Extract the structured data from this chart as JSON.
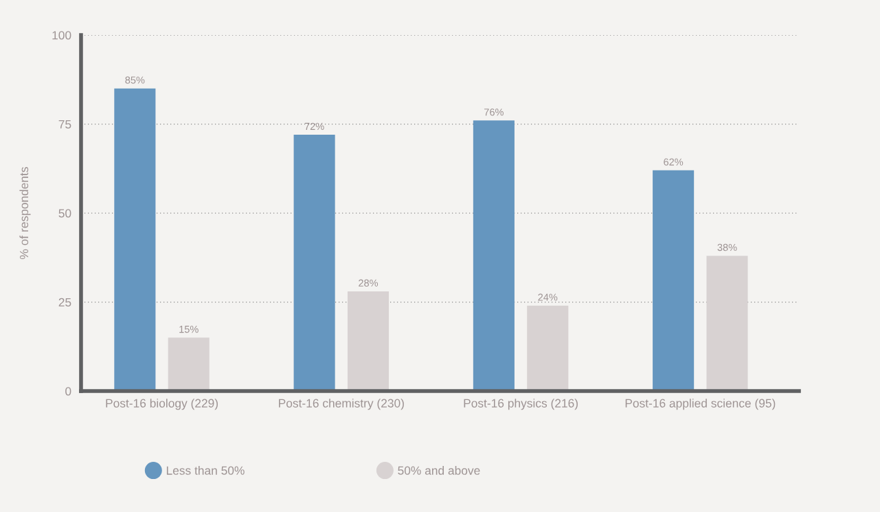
{
  "chart_data": {
    "type": "bar",
    "ylabel": "% of respondents",
    "categories": [
      "Post-16 biology (229)",
      "Post-16 chemistry (230)",
      "Post-16 physics (216)",
      "Post-16 applied science (95)"
    ],
    "series": [
      {
        "name": "Less than 50%",
        "color": "#6596bf",
        "values": [
          85,
          72,
          76,
          62
        ],
        "value_labels": [
          "85%",
          "72%",
          "76%",
          "62%"
        ]
      },
      {
        "name": "50% and above",
        "color": "#d8d2d2",
        "values": [
          15,
          28,
          24,
          38
        ],
        "value_labels": [
          "15%",
          "28%",
          "24%",
          "38%"
        ]
      }
    ],
    "ylim": [
      0,
      100
    ],
    "yticks": [
      0,
      25,
      50,
      75,
      100
    ],
    "grid": "y",
    "legend": "bottom"
  }
}
